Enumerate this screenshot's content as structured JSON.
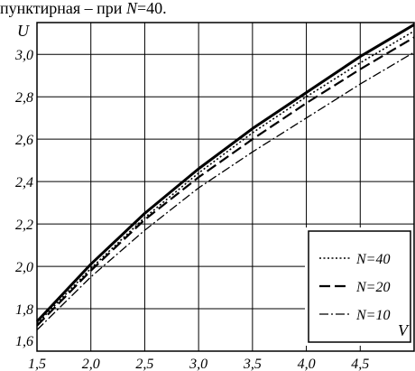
{
  "caption": {
    "prefix": "пунктирная – при ",
    "var": "N",
    "suffix": "=40."
  },
  "chart_data": {
    "type": "line",
    "xlabel": "V",
    "ylabel": "U",
    "xlim": [
      1.5,
      5.0
    ],
    "ylim": [
      1.6,
      3.15
    ],
    "x_ticks": [
      1.5,
      2.0,
      2.5,
      3.0,
      3.5,
      4.0,
      4.5
    ],
    "x_tick_labels": [
      "1,5",
      "2,0",
      "2,5",
      "3,0",
      "3,5",
      "4,0",
      "4,5"
    ],
    "y_ticks": [
      1.6,
      1.8,
      2.0,
      2.2,
      2.4,
      2.6,
      2.8,
      3.0
    ],
    "y_tick_labels": [
      "1,6",
      "1,8",
      "2,0",
      "2,2",
      "2,4",
      "2,6",
      "2,8",
      "3,0"
    ],
    "grid": true,
    "legend_position": "bottom-right",
    "series": [
      {
        "name": "",
        "style": "solid",
        "x": [
          1.5,
          2.0,
          2.5,
          3.0,
          3.5,
          4.0,
          4.5,
          5.0
        ],
        "y": [
          1.74,
          2.01,
          2.25,
          2.46,
          2.65,
          2.82,
          2.99,
          3.14
        ]
      },
      {
        "name": "N=40",
        "style": "dotted",
        "x": [
          1.5,
          2.0,
          2.5,
          3.0,
          3.5,
          4.0,
          4.5,
          5.0
        ],
        "y": [
          1.73,
          1.99,
          2.23,
          2.44,
          2.63,
          2.8,
          2.96,
          3.11
        ]
      },
      {
        "name": "N=20",
        "style": "dashed",
        "x": [
          1.5,
          2.0,
          2.5,
          3.0,
          3.5,
          4.0,
          4.5,
          5.0
        ],
        "y": [
          1.72,
          1.98,
          2.22,
          2.42,
          2.6,
          2.77,
          2.93,
          3.08
        ]
      },
      {
        "name": "N=10",
        "style": "dashdot",
        "x": [
          1.5,
          2.0,
          2.5,
          3.0,
          3.5,
          4.0,
          4.5,
          5.0
        ],
        "y": [
          1.7,
          1.95,
          2.17,
          2.37,
          2.54,
          2.7,
          2.86,
          3.01
        ]
      }
    ]
  }
}
